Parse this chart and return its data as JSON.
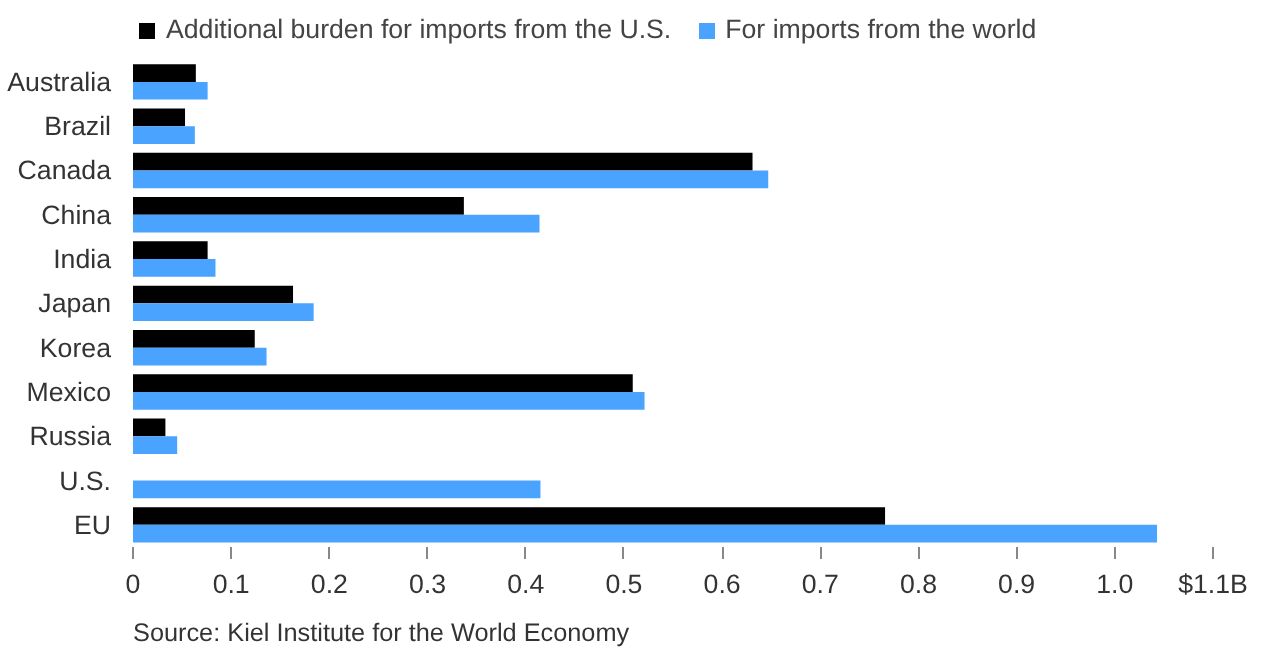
{
  "chart_data": {
    "type": "bar",
    "orientation": "horizontal",
    "categories": [
      "Australia",
      "Brazil",
      "Canada",
      "China",
      "India",
      "Japan",
      "Korea",
      "Mexico",
      "Russia",
      "U.S.",
      "EU"
    ],
    "series": [
      {
        "name": "Additional burden for imports from the U.S.",
        "color": "#000000",
        "values": [
          0.064,
          0.053,
          0.631,
          0.337,
          0.076,
          0.163,
          0.124,
          0.509,
          0.033,
          null,
          0.766
        ]
      },
      {
        "name": "For imports from the world",
        "color": "#4aa3ff",
        "values": [
          0.076,
          0.063,
          0.647,
          0.414,
          0.084,
          0.184,
          0.136,
          0.521,
          0.045,
          0.415,
          1.043
        ]
      }
    ],
    "xlim": [
      0,
      1.1
    ],
    "xticks": [
      0,
      0.1,
      0.2,
      0.3,
      0.4,
      0.5,
      0.6,
      0.7,
      0.8,
      0.9,
      {
        "value": 1.0,
        "label": "1.0"
      },
      {
        "value": 1.1,
        "label": "$1.1B"
      }
    ],
    "grid": false,
    "legend": "top left",
    "annotations": [
      "Source: Kiel Institute for the World Economy"
    ]
  }
}
